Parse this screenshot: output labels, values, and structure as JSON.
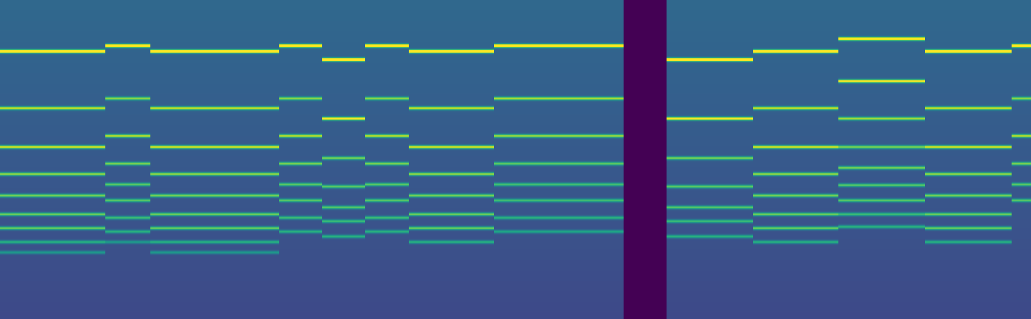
{
  "chart_data": {
    "type": "spectrogram",
    "tick_labels": false,
    "color": "viridis",
    "xlim": [
      0,
      1488
    ],
    "ylim": [
      461,
      0
    ],
    "color_range": [
      0,
      1
    ],
    "segments": [
      {
        "start": 0,
        "end": 152,
        "lines": [
          [
            75,
            1.0
          ],
          [
            157,
            0.65
          ],
          [
            213,
            0.7
          ],
          [
            252,
            0.6
          ],
          [
            283,
            0.55
          ],
          [
            310,
            0.55
          ],
          [
            330,
            0.55
          ],
          [
            350,
            0.4
          ],
          [
            365,
            0.3
          ]
        ]
      },
      {
        "start": 152,
        "end": 217,
        "lines": [
          [
            67,
            0.95
          ],
          [
            143,
            0.55
          ],
          [
            197,
            0.65
          ],
          [
            237,
            0.55
          ],
          [
            267,
            0.5
          ],
          [
            290,
            0.5
          ],
          [
            315,
            0.45
          ],
          [
            335,
            0.4
          ],
          [
            350,
            0.3
          ]
        ]
      },
      {
        "start": 217,
        "end": 403,
        "lines": [
          [
            75,
            1.0
          ],
          [
            157,
            0.65
          ],
          [
            213,
            0.7
          ],
          [
            252,
            0.6
          ],
          [
            283,
            0.55
          ],
          [
            310,
            0.55
          ],
          [
            330,
            0.55
          ],
          [
            350,
            0.4
          ],
          [
            365,
            0.3
          ]
        ]
      },
      {
        "start": 403,
        "end": 465,
        "lines": [
          [
            67,
            0.95
          ],
          [
            143,
            0.55
          ],
          [
            197,
            0.65
          ],
          [
            237,
            0.55
          ],
          [
            267,
            0.5
          ],
          [
            290,
            0.5
          ],
          [
            315,
            0.45
          ],
          [
            335,
            0.4
          ]
        ]
      },
      {
        "start": 465,
        "end": 527,
        "lines": [
          [
            87,
            1.0
          ],
          [
            172,
            0.8
          ],
          [
            229,
            0.55
          ],
          [
            270,
            0.5
          ],
          [
            300,
            0.5
          ],
          [
            320,
            0.45
          ],
          [
            342,
            0.4
          ]
        ]
      },
      {
        "start": 527,
        "end": 590,
        "lines": [
          [
            67,
            0.95
          ],
          [
            143,
            0.55
          ],
          [
            197,
            0.65
          ],
          [
            237,
            0.55
          ],
          [
            267,
            0.5
          ],
          [
            290,
            0.5
          ],
          [
            315,
            0.45
          ],
          [
            335,
            0.4
          ]
        ]
      },
      {
        "start": 590,
        "end": 713,
        "lines": [
          [
            75,
            1.0
          ],
          [
            157,
            0.65
          ],
          [
            213,
            0.7
          ],
          [
            252,
            0.6
          ],
          [
            283,
            0.55
          ],
          [
            310,
            0.55
          ],
          [
            330,
            0.55
          ],
          [
            350,
            0.4
          ]
        ]
      },
      {
        "start": 713,
        "end": 900,
        "lines": [
          [
            67,
            0.95
          ],
          [
            143,
            0.6
          ],
          [
            197,
            0.6
          ],
          [
            237,
            0.5
          ],
          [
            267,
            0.45
          ],
          [
            290,
            0.45
          ],
          [
            315,
            0.4
          ],
          [
            335,
            0.35
          ]
        ]
      },
      {
        "start": 962,
        "end": 1087,
        "lines": [
          [
            87,
            1.0
          ],
          [
            172,
            0.8
          ],
          [
            229,
            0.55
          ],
          [
            270,
            0.5
          ],
          [
            300,
            0.5
          ],
          [
            320,
            0.45
          ],
          [
            342,
            0.4
          ]
        ]
      },
      {
        "start": 1087,
        "end": 1210,
        "lines": [
          [
            75,
            1.0
          ],
          [
            157,
            0.65
          ],
          [
            213,
            0.7
          ],
          [
            252,
            0.6
          ],
          [
            283,
            0.55
          ],
          [
            310,
            0.55
          ],
          [
            330,
            0.55
          ],
          [
            350,
            0.4
          ]
        ]
      },
      {
        "start": 1210,
        "end": 1335,
        "lines": [
          [
            57,
            0.9
          ],
          [
            118,
            0.75
          ],
          [
            172,
            0.6
          ],
          [
            213,
            0.55
          ],
          [
            243,
            0.55
          ],
          [
            268,
            0.5
          ],
          [
            290,
            0.5
          ],
          [
            310,
            0.45
          ],
          [
            328,
            0.4
          ]
        ]
      },
      {
        "start": 1335,
        "end": 1460,
        "lines": [
          [
            75,
            1.0
          ],
          [
            157,
            0.65
          ],
          [
            213,
            0.7
          ],
          [
            252,
            0.6
          ],
          [
            283,
            0.55
          ],
          [
            310,
            0.55
          ],
          [
            330,
            0.55
          ],
          [
            350,
            0.4
          ]
        ]
      },
      {
        "start": 1460,
        "end": 1488,
        "lines": [
          [
            67,
            0.95
          ],
          [
            143,
            0.55
          ],
          [
            197,
            0.65
          ],
          [
            237,
            0.55
          ],
          [
            267,
            0.5
          ],
          [
            290,
            0.5
          ]
        ]
      }
    ]
  }
}
